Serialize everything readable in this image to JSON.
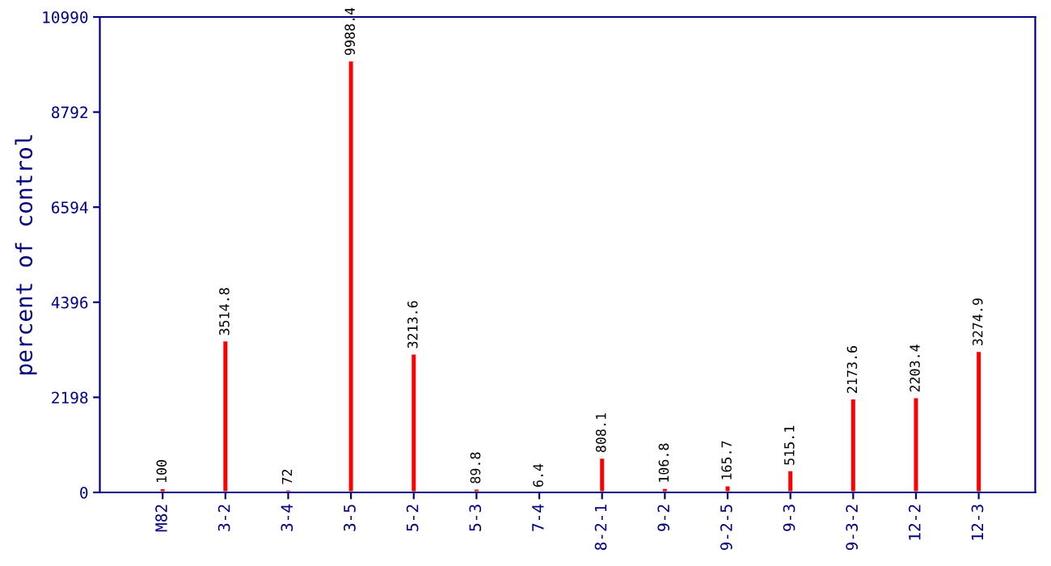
{
  "chart_data": {
    "type": "bar",
    "ylabel": "percent of control",
    "categories": [
      "M82",
      "3-2",
      "3-4",
      "3-5",
      "5-2",
      "5-3",
      "7-4",
      "8-2-1",
      "9-2",
      "9-2-5",
      "9-3",
      "9-3-2",
      "12-2",
      "12-3"
    ],
    "values": [
      100,
      3514.8,
      72,
      9988.4,
      3213.6,
      89.8,
      6.4,
      808.1,
      106.8,
      165.7,
      515.1,
      2173.6,
      2203.4,
      3274.9
    ],
    "color": "#ff0000",
    "ylim": [
      0,
      10990
    ],
    "yticks": [
      0,
      2198,
      4396,
      6594,
      8792,
      10990
    ],
    "data_labels": true,
    "grid": false,
    "legend": false
  }
}
